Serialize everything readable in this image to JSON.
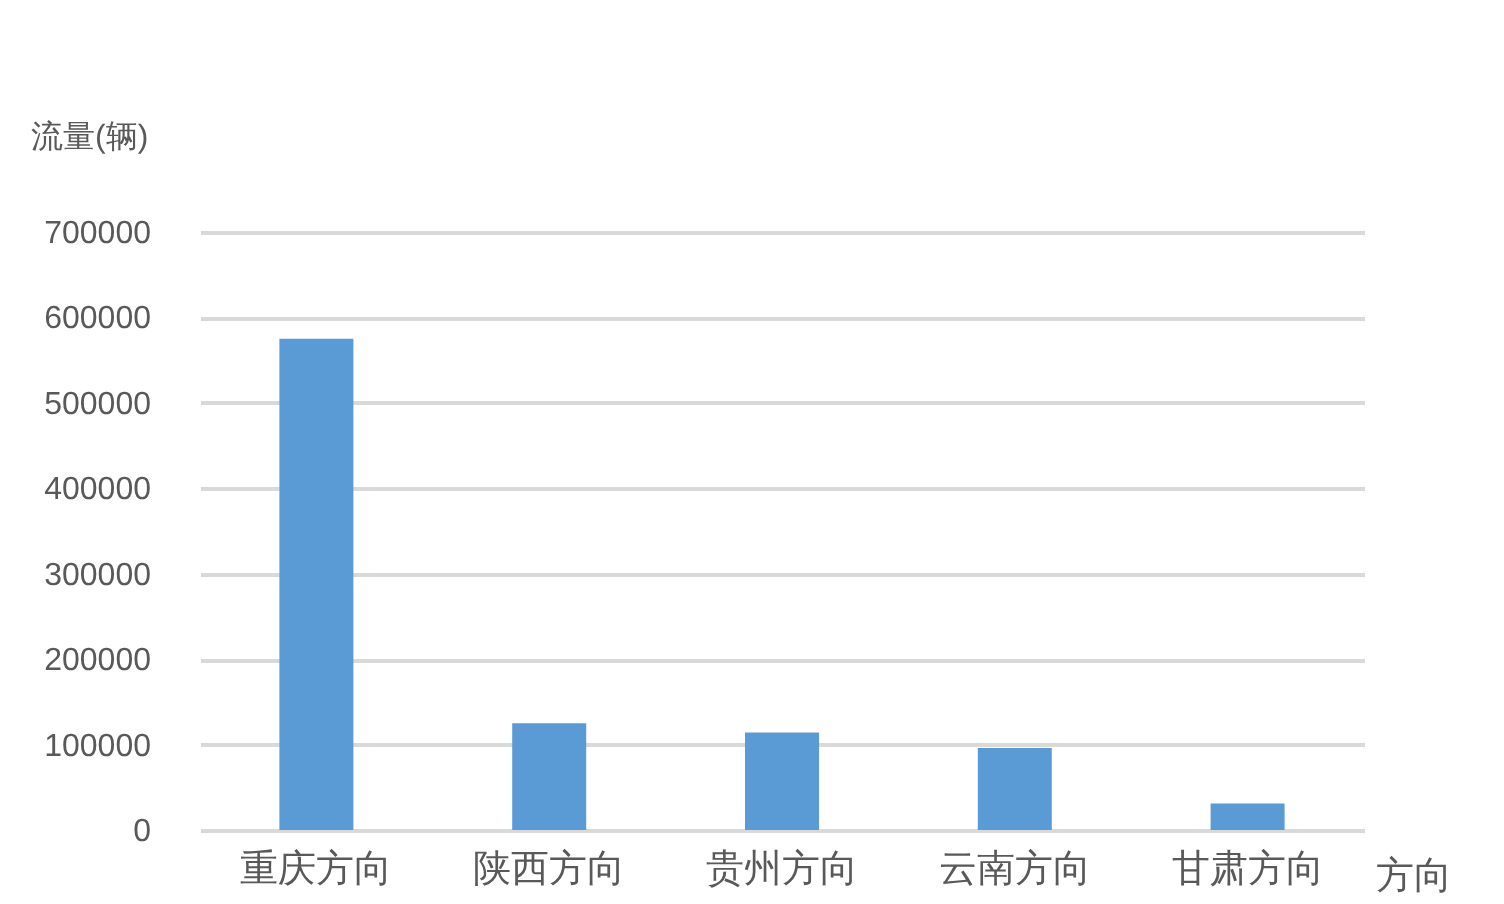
{
  "chart_data": {
    "type": "bar",
    "ylabel": "流量(辆)",
    "categories": [
      "重庆方向",
      "陕西方向",
      "贵州方向",
      "云南方向",
      "甘肃方向"
    ],
    "values": [
      575000,
      125000,
      114000,
      96000,
      31000
    ],
    "annotations": [
      "方向"
    ],
    "color": "#5b9bd5",
    "ylim": [
      0,
      700000
    ],
    "yticks": [
      0,
      100000,
      200000,
      300000,
      400000,
      500000,
      600000,
      700000
    ],
    "grid": "y"
  }
}
